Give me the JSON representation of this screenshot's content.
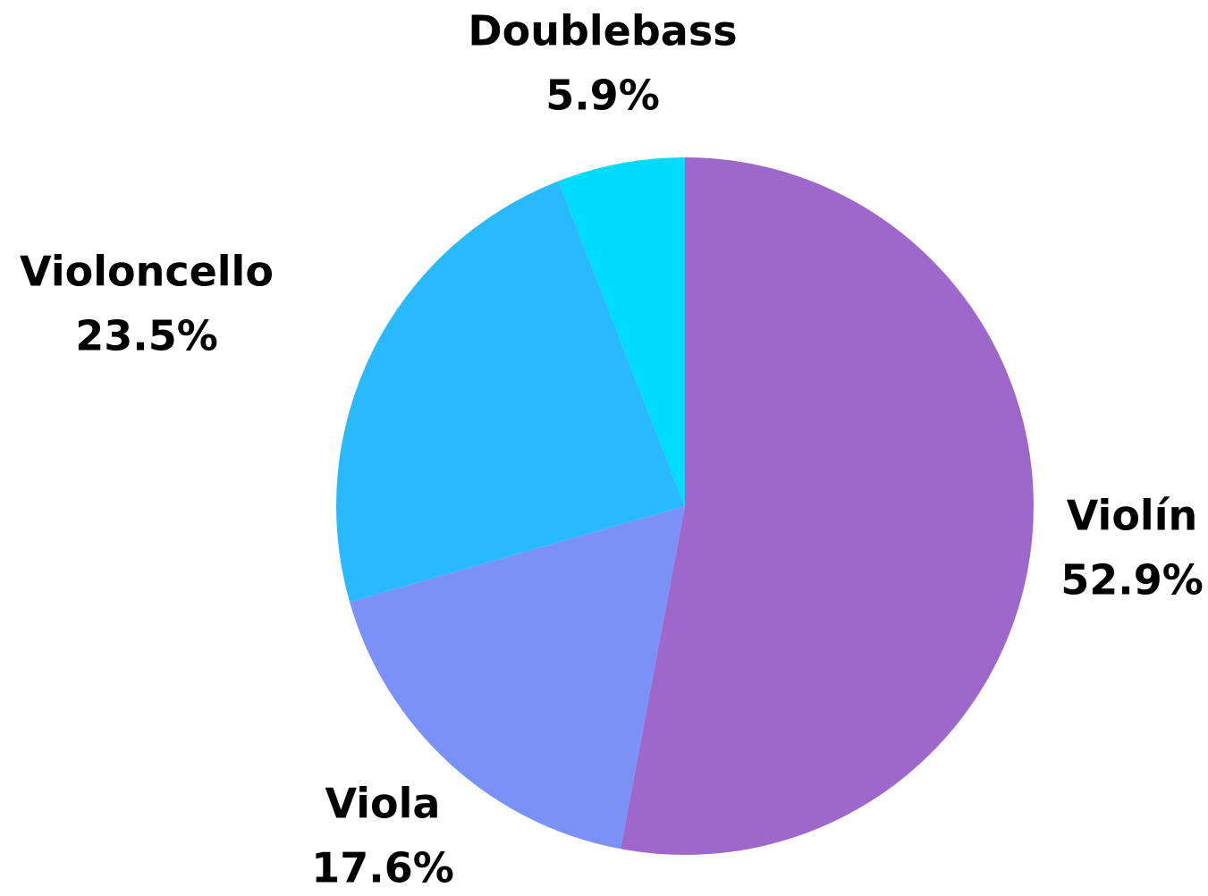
{
  "chart_data": {
    "type": "pie",
    "title": "",
    "slices": [
      {
        "label": "Violín",
        "value": 52.9,
        "display": "52.9%",
        "color": "#9E67CB"
      },
      {
        "label": "Viola",
        "value": 17.6,
        "display": "17.6%",
        "color": "#7A91F8"
      },
      {
        "label": "Violoncello",
        "value": 23.5,
        "display": "23.5%",
        "color": "#29B9FF"
      },
      {
        "label": "Doublebass",
        "value": 5.9,
        "display": "5.9%",
        "color": "#00DCFF"
      }
    ],
    "start_angle": "12 o'clock",
    "direction": "clockwise",
    "legend": "none",
    "label_position": "outside"
  }
}
